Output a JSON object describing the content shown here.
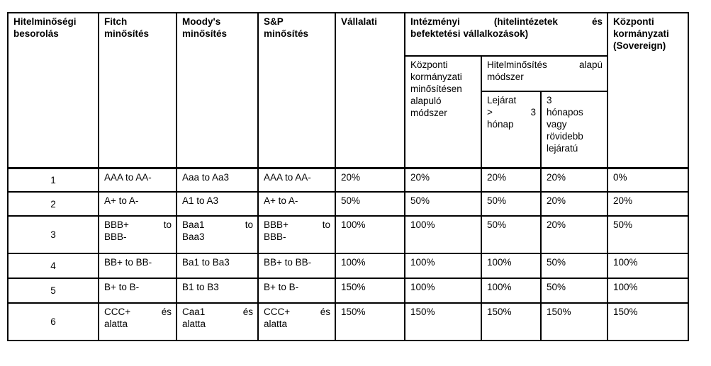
{
  "table": {
    "header": {
      "rating_class": "Hitelminőségi\nbesorolás",
      "fitch": "Fitch\nminősítés",
      "moodys": "Moody's\nminősítés",
      "sp": "S&P\nminősítés",
      "corporate": "Vállalati",
      "institutional_group": "Intézményi (hitelintézetek és\nbefektetési vállalkozások)",
      "gov_rating_method": "Központi\nkormányzati\nminősítésen\nalapuló\nmódszer",
      "rating_based_method": "Hitelminősítés alapú\nmódszer",
      "maturity_over_3m": "Lejárat\n> 3\nhónap",
      "maturity_3m_or_less": "3\nhónapos\nvagy\nrövidebb\nlejáratú",
      "sovereign": "Központi\nkormányzati\n(Sovereign)"
    },
    "rows": [
      [
        "1",
        "AAA to AA-",
        "Aaa to Aa3",
        "AAA to AA-",
        "20%",
        "20%",
        "20%",
        "20%",
        "0%"
      ],
      [
        "2",
        "A+ to A-",
        "A1 to A3",
        "A+ to A-",
        "50%",
        "50%",
        "50%",
        "20%",
        "20%"
      ],
      [
        "3",
        "BBB+ to\nBBB-",
        "Baa1 to\nBaa3",
        "BBB+ to\nBBB-",
        "100%",
        "100%",
        "50%",
        "20%",
        "50%"
      ],
      [
        "4",
        "BB+ to BB-",
        "Ba1 to Ba3",
        "BB+ to BB-",
        "100%",
        "100%",
        "100%",
        "50%",
        "100%"
      ],
      [
        "5",
        "B+ to B-",
        "B1 to B3",
        "B+ to B-",
        "150%",
        "100%",
        "100%",
        "50%",
        "100%"
      ],
      [
        "6",
        "CCC+ és\nalatta",
        "Caa1 és\nalatta",
        "CCC+ és\nalatta",
        "150%",
        "150%",
        "150%",
        "150%",
        "150%"
      ]
    ]
  }
}
